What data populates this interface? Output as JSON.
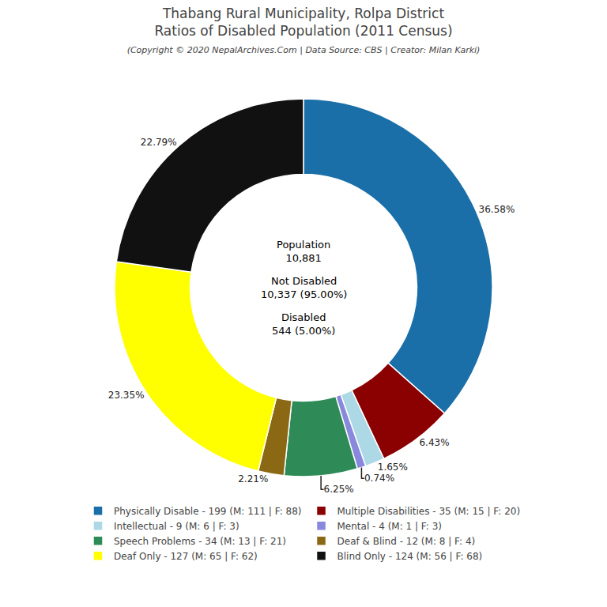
{
  "chart_data": {
    "type": "donut",
    "title": "Thabang Rural Municipality, Rolpa District\nRatios of Disabled Population (2011 Census)",
    "subtitle": "(Copyright © 2020 NepalArchives.Com | Data Source: CBS | Creator: Milan Karki)",
    "categories": [
      "Physically Disable - 199 (M: 111 | F: 88)",
      "Multiple Disabilities - 35 (M: 15 | F: 20)",
      "Intellectual - 9 (M: 6 | F: 3)",
      "Mental - 4 (M: 1 | F: 3)",
      "Speech Problems - 34 (M: 13 | F: 21)",
      "Deaf & Blind - 12 (M: 8 | F: 4)",
      "Deaf Only - 127 (M: 65 | F: 62)",
      "Blind Only - 124 (M: 56 | F: 68)"
    ],
    "values": [
      36.58,
      6.43,
      1.65,
      0.74,
      6.25,
      2.21,
      23.35,
      22.79
    ],
    "value_labels": [
      "36.58%",
      "6.43%",
      "1.65%",
      "0.74%",
      "6.25%",
      "2.21%",
      "23.35%",
      "22.79%"
    ],
    "colors": [
      "#1b6fa8",
      "#8b0000",
      "#add8e6",
      "#8888dd",
      "#2e8b57",
      "#8b6914",
      "#ffff00",
      "#111111"
    ],
    "data_labels": true,
    "legend": "bottom",
    "annotations": [
      "Population\n10,881",
      "Not Disabled\n10,337 (95.00%)",
      "Disabled\n544 (5.00%)"
    ]
  }
}
